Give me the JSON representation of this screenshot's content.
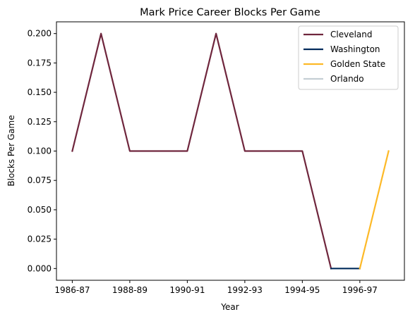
{
  "chart_data": {
    "type": "line",
    "title": "Mark Price Career Blocks Per Game",
    "xlabel": "Year",
    "ylabel": "Blocks Per Game",
    "x_tick_labels": [
      "1986-87",
      "1988-89",
      "1990-91",
      "1992-93",
      "1994-95",
      "1996-97"
    ],
    "x_tick_positions": [
      0,
      2,
      4,
      6,
      8,
      10
    ],
    "y_ticks": [
      0.0,
      0.025,
      0.05,
      0.075,
      0.1,
      0.125,
      0.15,
      0.175,
      0.2
    ],
    "y_tick_labels": [
      "0.000",
      "0.025",
      "0.050",
      "0.075",
      "0.100",
      "0.125",
      "0.150",
      "0.175",
      "0.200"
    ],
    "xlim": [
      -0.55,
      11.55
    ],
    "ylim": [
      -0.01,
      0.21
    ],
    "grid": false,
    "legend_placement": "top-right",
    "series": [
      {
        "name": "Cleveland",
        "color": "#6F263D",
        "points": [
          [
            0,
            0.1
          ],
          [
            1,
            0.2
          ],
          [
            2,
            0.1
          ],
          [
            3,
            0.1
          ],
          [
            4,
            0.1
          ],
          [
            5,
            0.2
          ],
          [
            6,
            0.1
          ],
          [
            7,
            0.1
          ],
          [
            8,
            0.1
          ],
          [
            9,
            0.0
          ]
        ]
      },
      {
        "name": "Washington",
        "color": "#002B5C",
        "points": [
          [
            9,
            0.0
          ],
          [
            10,
            0.0
          ]
        ]
      },
      {
        "name": "Golden State",
        "color": "#FDB927",
        "points": [
          [
            10,
            0.0
          ],
          [
            11,
            0.1
          ]
        ]
      },
      {
        "name": "Orlando",
        "color": "#C4CED4",
        "points": []
      }
    ]
  }
}
